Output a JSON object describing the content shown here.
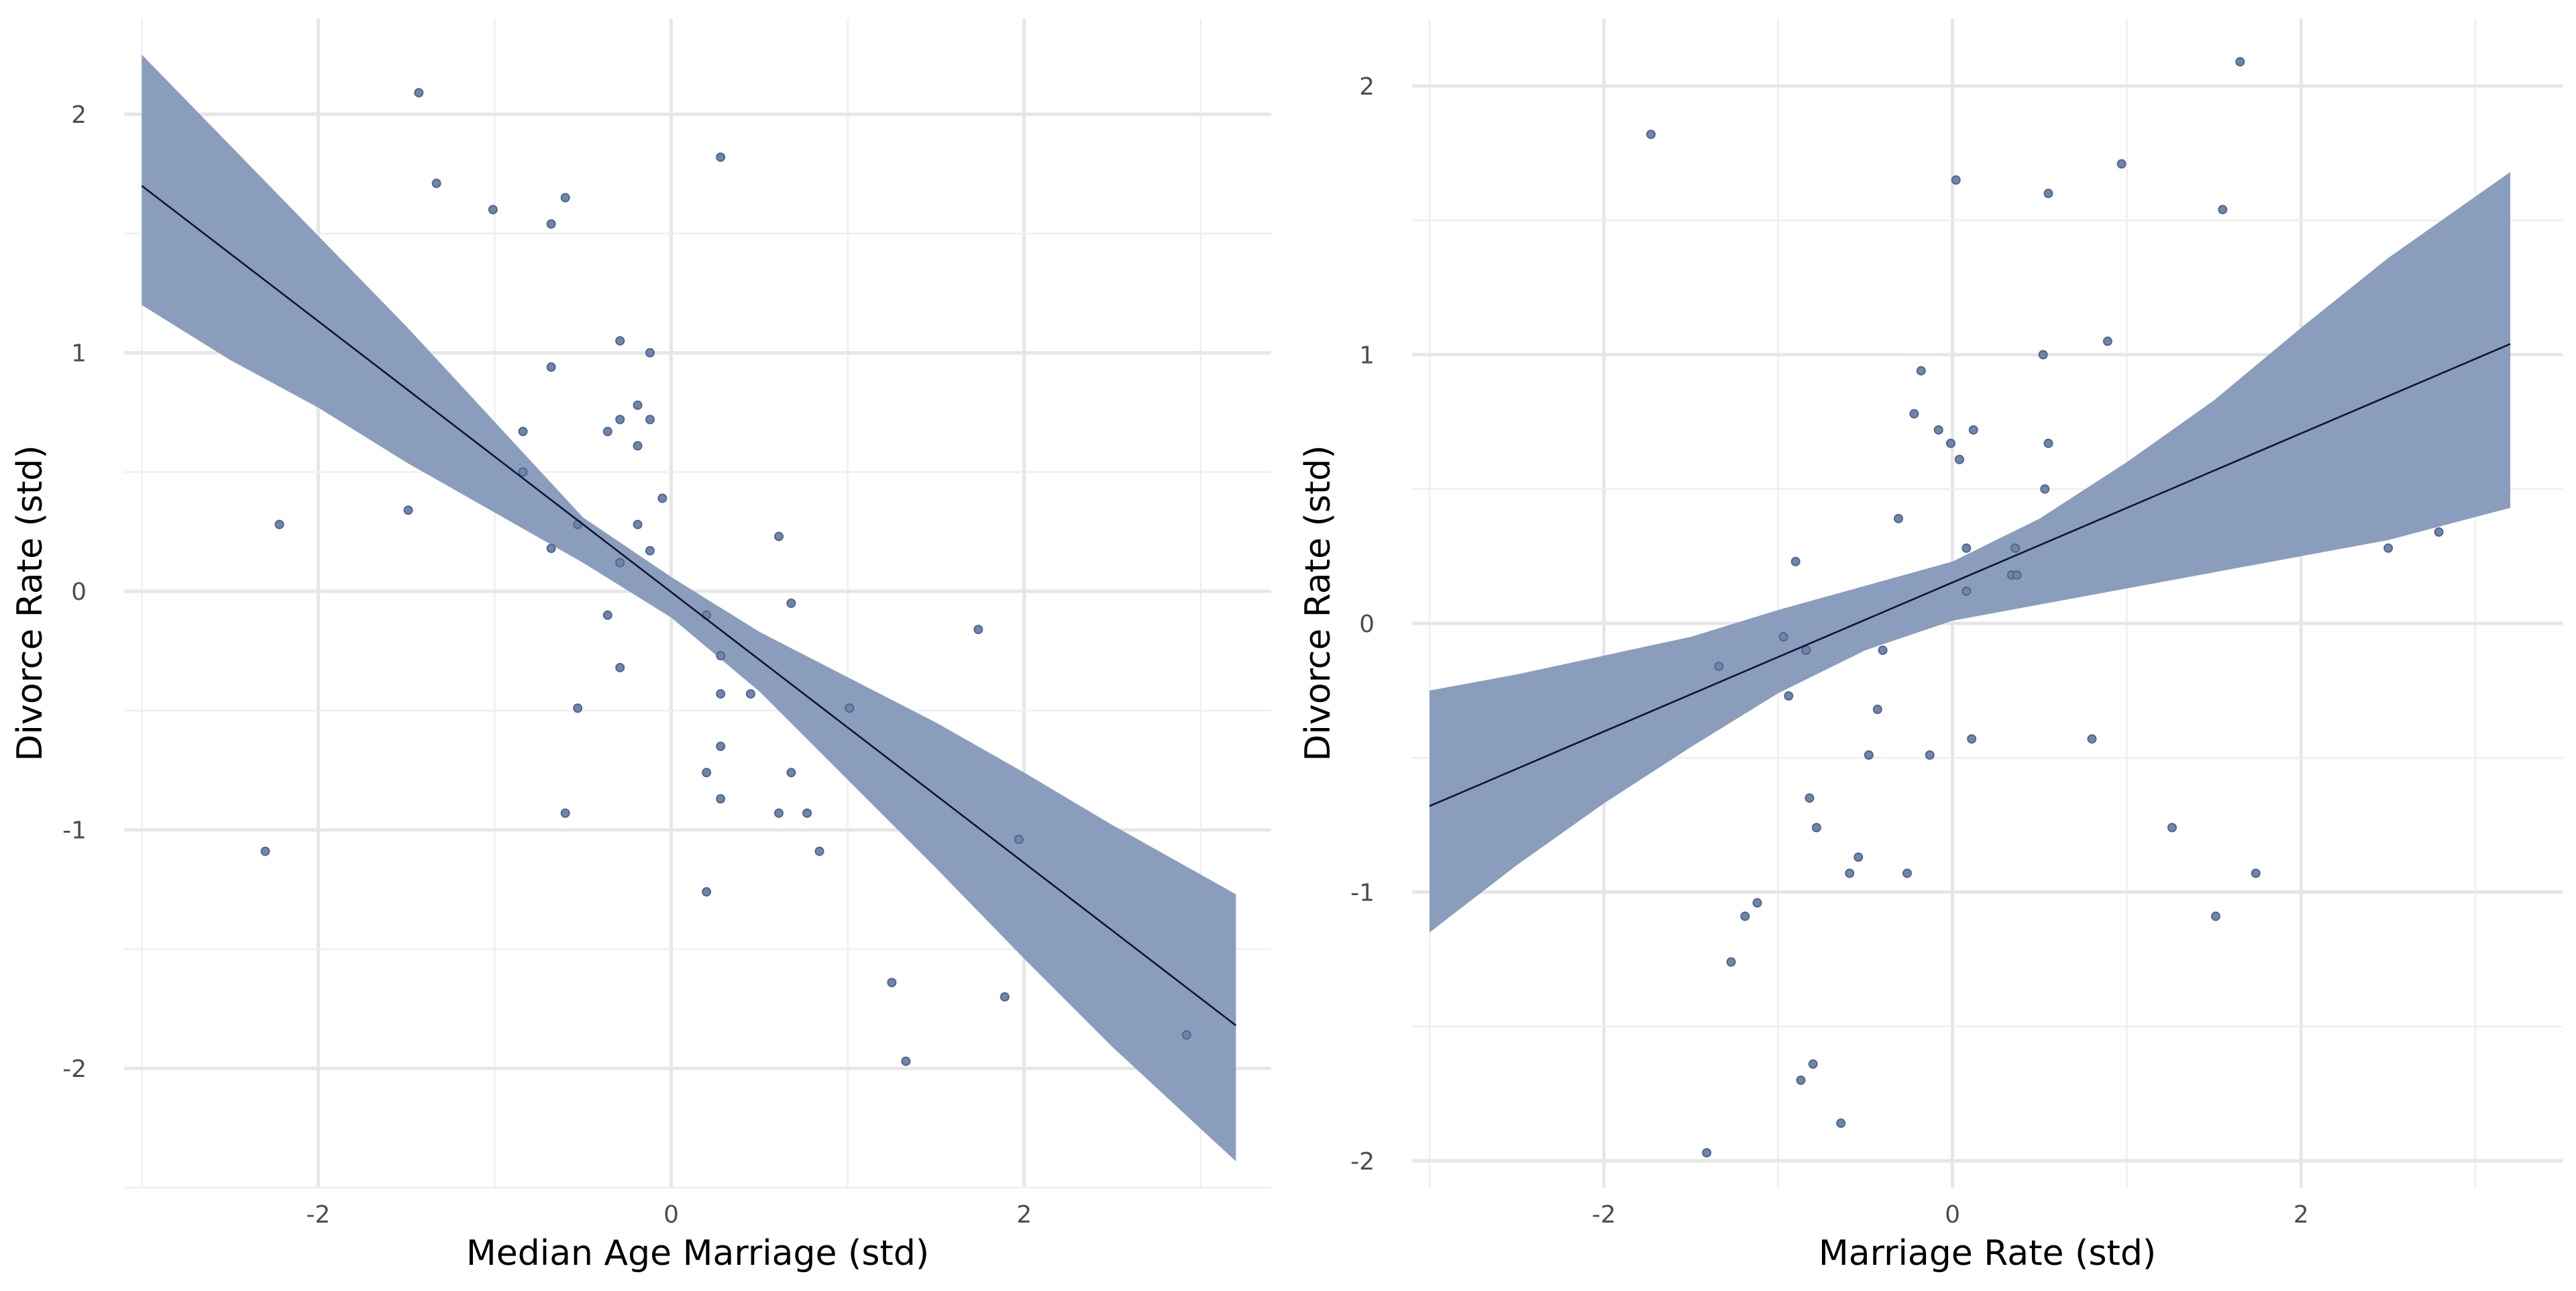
{
  "chart_data": [
    {
      "type": "scatter",
      "xlabel": "Median Age Marriage (std)",
      "ylabel": "Divorce Rate (std)",
      "xlim": [
        -3.1,
        3.4
      ],
      "ylim": [
        -2.5,
        2.4
      ],
      "x_ticks": [
        -2,
        0,
        2
      ],
      "x_tick_labels": [
        "-2",
        "0",
        "2"
      ],
      "y_ticks": [
        -2,
        -1,
        0,
        1,
        2
      ],
      "y_tick_labels": [
        "-2",
        "-1",
        "0",
        "1",
        "2"
      ],
      "grid": true,
      "points": [
        {
          "x": -1.43,
          "y": 2.09
        },
        {
          "x": -1.33,
          "y": 1.71
        },
        {
          "x": -1.01,
          "y": 1.6
        },
        {
          "x": -0.6,
          "y": 1.65
        },
        {
          "x": -0.68,
          "y": 1.54
        },
        {
          "x": 0.28,
          "y": 1.82
        },
        {
          "x": -0.29,
          "y": 1.05
        },
        {
          "x": -0.12,
          "y": 1.0
        },
        {
          "x": -0.68,
          "y": 0.94
        },
        {
          "x": -0.19,
          "y": 0.78
        },
        {
          "x": -0.29,
          "y": 0.72
        },
        {
          "x": -0.12,
          "y": 0.72
        },
        {
          "x": -0.36,
          "y": 0.67
        },
        {
          "x": -0.84,
          "y": 0.67
        },
        {
          "x": -0.19,
          "y": 0.61
        },
        {
          "x": -0.84,
          "y": 0.5
        },
        {
          "x": -0.05,
          "y": 0.39
        },
        {
          "x": -1.49,
          "y": 0.34
        },
        {
          "x": -2.22,
          "y": 0.28
        },
        {
          "x": -0.53,
          "y": 0.28
        },
        {
          "x": -0.19,
          "y": 0.28
        },
        {
          "x": 0.61,
          "y": 0.23
        },
        {
          "x": -0.68,
          "y": 0.18
        },
        {
          "x": -0.12,
          "y": 0.17
        },
        {
          "x": -0.29,
          "y": 0.12
        },
        {
          "x": 0.68,
          "y": -0.05
        },
        {
          "x": -0.36,
          "y": -0.1
        },
        {
          "x": 0.2,
          "y": -0.1
        },
        {
          "x": 1.74,
          "y": -0.16
        },
        {
          "x": 0.28,
          "y": -0.27
        },
        {
          "x": -0.29,
          "y": -0.32
        },
        {
          "x": 0.28,
          "y": -0.43
        },
        {
          "x": 0.45,
          "y": -0.43
        },
        {
          "x": -0.53,
          "y": -0.49
        },
        {
          "x": 1.01,
          "y": -0.49
        },
        {
          "x": 0.28,
          "y": -0.65
        },
        {
          "x": 0.2,
          "y": -0.76
        },
        {
          "x": 0.68,
          "y": -0.76
        },
        {
          "x": 0.28,
          "y": -0.87
        },
        {
          "x": -0.6,
          "y": -0.93
        },
        {
          "x": 0.61,
          "y": -0.93
        },
        {
          "x": 0.77,
          "y": -0.93
        },
        {
          "x": 1.97,
          "y": -1.04
        },
        {
          "x": -2.3,
          "y": -1.09
        },
        {
          "x": 0.84,
          "y": -1.09
        },
        {
          "x": 0.2,
          "y": -1.26
        },
        {
          "x": 1.25,
          "y": -1.64
        },
        {
          "x": 1.89,
          "y": -1.7
        },
        {
          "x": 2.92,
          "y": -1.86
        },
        {
          "x": 1.33,
          "y": -1.97
        }
      ],
      "fit_line": [
        {
          "x": -3.0,
          "y": 1.7
        },
        {
          "x": 3.2,
          "y": -1.82
        }
      ],
      "interval_band": [
        {
          "x": -3.0,
          "lo": 1.2,
          "hi": 2.25
        },
        {
          "x": -2.5,
          "lo": 0.97,
          "hi": 1.87
        },
        {
          "x": -2.0,
          "lo": 0.77,
          "hi": 1.49
        },
        {
          "x": -1.5,
          "lo": 0.54,
          "hi": 1.11
        },
        {
          "x": -1.0,
          "lo": 0.33,
          "hi": 0.71
        },
        {
          "x": -0.5,
          "lo": 0.12,
          "hi": 0.31
        },
        {
          "x": 0.0,
          "lo": -0.11,
          "hi": 0.06
        },
        {
          "x": 0.5,
          "lo": -0.42,
          "hi": -0.17
        },
        {
          "x": 1.0,
          "lo": -0.79,
          "hi": -0.36
        },
        {
          "x": 1.5,
          "lo": -1.16,
          "hi": -0.55
        },
        {
          "x": 2.0,
          "lo": -1.54,
          "hi": -0.76
        },
        {
          "x": 2.5,
          "lo": -1.91,
          "hi": -0.98
        },
        {
          "x": 3.2,
          "lo": -2.39,
          "hi": -1.27
        }
      ]
    },
    {
      "type": "scatter",
      "xlabel": "Marriage Rate (std)",
      "ylabel": "Divorce Rate (std)",
      "xlim": [
        -3.1,
        3.5
      ],
      "ylim": [
        -2.1,
        2.25
      ],
      "x_ticks": [
        -2,
        0,
        2
      ],
      "x_tick_labels": [
        "-2",
        "0",
        "2"
      ],
      "y_ticks": [
        -2,
        -1,
        0,
        1,
        2
      ],
      "y_tick_labels": [
        "-2",
        "-1",
        "0",
        "1",
        "2"
      ],
      "grid": true,
      "points": [
        {
          "x": 1.65,
          "y": 2.09
        },
        {
          "x": -1.73,
          "y": 1.82
        },
        {
          "x": 0.97,
          "y": 1.71
        },
        {
          "x": 0.02,
          "y": 1.65
        },
        {
          "x": 0.55,
          "y": 1.6
        },
        {
          "x": 1.55,
          "y": 1.54
        },
        {
          "x": 0.89,
          "y": 1.05
        },
        {
          "x": 0.52,
          "y": 1.0
        },
        {
          "x": -0.18,
          "y": 0.94
        },
        {
          "x": -0.22,
          "y": 0.78
        },
        {
          "x": -0.08,
          "y": 0.72
        },
        {
          "x": 0.12,
          "y": 0.72
        },
        {
          "x": -0.01,
          "y": 0.67
        },
        {
          "x": 0.55,
          "y": 0.67
        },
        {
          "x": 0.04,
          "y": 0.61
        },
        {
          "x": 0.53,
          "y": 0.5
        },
        {
          "x": -0.31,
          "y": 0.39
        },
        {
          "x": 2.79,
          "y": 0.34
        },
        {
          "x": 2.5,
          "y": 0.28
        },
        {
          "x": 0.08,
          "y": 0.28
        },
        {
          "x": 0.36,
          "y": 0.28
        },
        {
          "x": -0.9,
          "y": 0.23
        },
        {
          "x": 0.34,
          "y": 0.18
        },
        {
          "x": 0.37,
          "y": 0.18
        },
        {
          "x": 0.08,
          "y": 0.12
        },
        {
          "x": -0.97,
          "y": -0.05
        },
        {
          "x": -0.84,
          "y": -0.1
        },
        {
          "x": -0.4,
          "y": -0.1
        },
        {
          "x": -1.34,
          "y": -0.16
        },
        {
          "x": -0.94,
          "y": -0.27
        },
        {
          "x": -0.43,
          "y": -0.32
        },
        {
          "x": 0.11,
          "y": -0.43
        },
        {
          "x": 0.8,
          "y": -0.43
        },
        {
          "x": -0.13,
          "y": -0.49
        },
        {
          "x": -0.48,
          "y": -0.49
        },
        {
          "x": -0.82,
          "y": -0.65
        },
        {
          "x": -0.78,
          "y": -0.76
        },
        {
          "x": 1.26,
          "y": -0.76
        },
        {
          "x": -0.54,
          "y": -0.87
        },
        {
          "x": -0.59,
          "y": -0.93
        },
        {
          "x": -0.26,
          "y": -0.93
        },
        {
          "x": 1.74,
          "y": -0.93
        },
        {
          "x": -1.12,
          "y": -1.04
        },
        {
          "x": -1.19,
          "y": -1.09
        },
        {
          "x": 1.51,
          "y": -1.09
        },
        {
          "x": -1.27,
          "y": -1.26
        },
        {
          "x": -0.8,
          "y": -1.64
        },
        {
          "x": -0.87,
          "y": -1.7
        },
        {
          "x": -0.64,
          "y": -1.86
        },
        {
          "x": -1.41,
          "y": -1.97
        }
      ],
      "fit_line": [
        {
          "x": -3.0,
          "y": -0.68
        },
        {
          "x": 3.2,
          "y": 1.04
        }
      ],
      "interval_band": [
        {
          "x": -3.0,
          "lo": -1.15,
          "hi": -0.25
        },
        {
          "x": -2.5,
          "lo": -0.9,
          "hi": -0.19
        },
        {
          "x": -2.0,
          "lo": -0.67,
          "hi": -0.12
        },
        {
          "x": -1.5,
          "lo": -0.46,
          "hi": -0.05
        },
        {
          "x": -1.0,
          "lo": -0.26,
          "hi": 0.05
        },
        {
          "x": -0.5,
          "lo": -0.1,
          "hi": 0.14
        },
        {
          "x": 0.0,
          "lo": 0.01,
          "hi": 0.23
        },
        {
          "x": 0.5,
          "lo": 0.07,
          "hi": 0.39
        },
        {
          "x": 1.0,
          "lo": 0.13,
          "hi": 0.6
        },
        {
          "x": 1.5,
          "lo": 0.19,
          "hi": 0.83
        },
        {
          "x": 2.0,
          "lo": 0.25,
          "hi": 1.1
        },
        {
          "x": 2.5,
          "lo": 0.31,
          "hi": 1.36
        },
        {
          "x": 3.2,
          "lo": 0.43,
          "hi": 1.68
        }
      ]
    }
  ]
}
